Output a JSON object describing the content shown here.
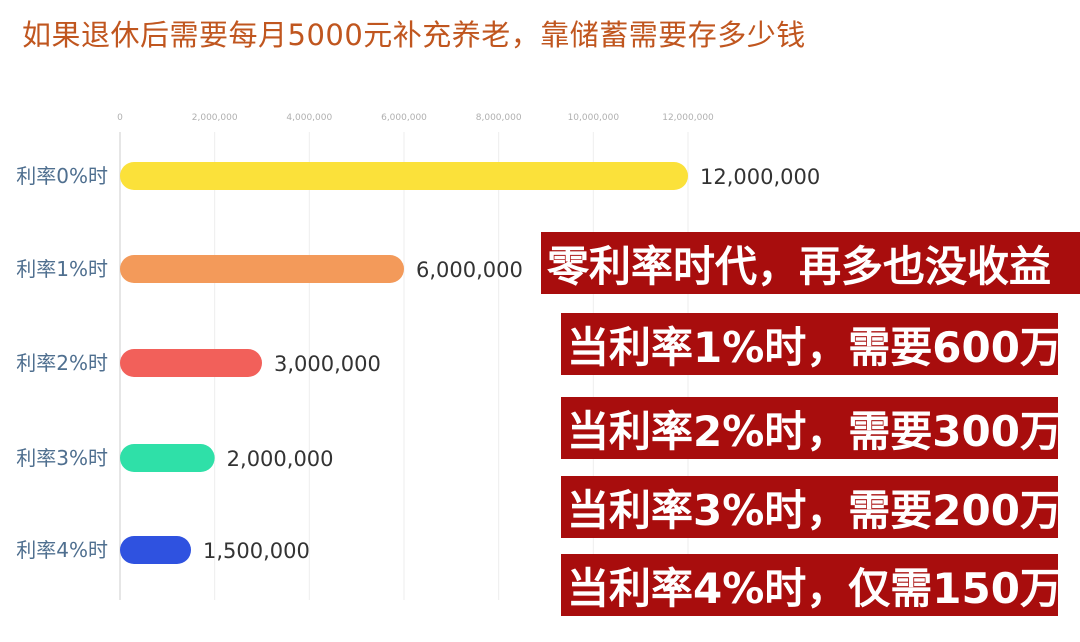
{
  "title": "如果退休后需要每月5000元补充养老，靠储蓄需要存多少钱",
  "chart_data": {
    "type": "bar",
    "orientation": "horizontal",
    "categories": [
      "利率0%时",
      "利率1%时",
      "利率2%时",
      "利率3%时",
      "利率4%时"
    ],
    "values": [
      12000000,
      6000000,
      3000000,
      2000000,
      1500000
    ],
    "value_labels": [
      "12,000,000",
      "6,000,000",
      "3,000,000",
      "2,000,000",
      "1,500,000"
    ],
    "colors": [
      "#fbe13a",
      "#f39a5a",
      "#f2605a",
      "#2fe0a8",
      "#2f52e0"
    ],
    "xlim": [
      0,
      12000000
    ],
    "x_ticks": [
      0,
      2000000,
      4000000,
      6000000,
      8000000,
      10000000,
      12000000
    ],
    "x_tick_labels": [
      "0",
      "2,000,000",
      "4,000,000",
      "6,000,000",
      "8,000,000",
      "10,000,000",
      "12,000,000"
    ],
    "grid": true
  },
  "banners": [
    "零利率时代，再多也没收益",
    "当利率1%时，需要600万",
    "当利率2%时，需要300万",
    "当利率3%时，需要200万",
    "当利率4%时，仅需150万"
  ]
}
